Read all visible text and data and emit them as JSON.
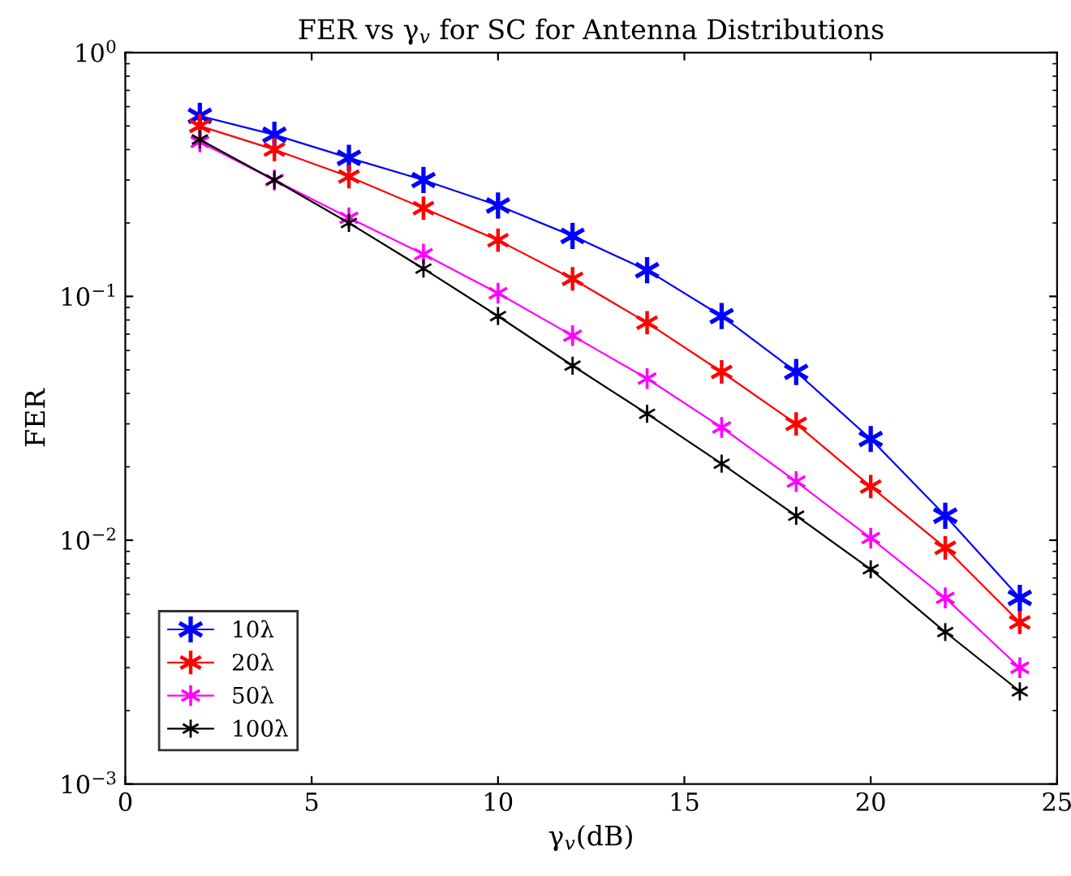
{
  "chart_data": {
    "type": "line",
    "title": "FER vs γ$_{v}$ for SC for Antenna Distributions",
    "xlabel": "γ$_{v}$(dB)",
    "ylabel": "FER",
    "x": [
      2,
      4,
      6,
      8,
      10,
      12,
      14,
      16,
      18,
      20,
      22,
      24
    ],
    "series": [
      {
        "name": "10λ",
        "color": "#0000ff",
        "values": [
          0.55,
          0.46,
          0.37,
          0.3,
          0.236,
          0.177,
          0.128,
          0.083,
          0.049,
          0.026,
          0.0126,
          0.0058
        ]
      },
      {
        "name": "20λ",
        "color": "#ff0000",
        "values": [
          0.5,
          0.4,
          0.31,
          0.23,
          0.17,
          0.118,
          0.078,
          0.049,
          0.03,
          0.0166,
          0.0093,
          0.0046
        ]
      },
      {
        "name": "50λ",
        "color": "#ff00ff",
        "values": [
          0.43,
          0.3,
          0.21,
          0.149,
          0.103,
          0.069,
          0.046,
          0.029,
          0.0174,
          0.0102,
          0.0058,
          0.003
        ]
      },
      {
        "name": "100λ",
        "color": "#000000",
        "values": [
          0.44,
          0.3,
          0.2,
          0.13,
          0.083,
          0.052,
          0.033,
          0.0206,
          0.0126,
          0.0076,
          0.0042,
          0.0024
        ]
      }
    ],
    "log": "y",
    "xlim": [
      0,
      25
    ],
    "xticks": [
      0,
      5,
      10,
      15,
      20,
      25
    ],
    "ylim": [
      0.001,
      1
    ],
    "yticks": [
      {
        "value": 0.001,
        "label": "10$^{−3}$"
      },
      {
        "value": 0.01,
        "label": "10$^{−2}$"
      },
      {
        "value": 0.1,
        "label": "10$^{−1}$"
      },
      {
        "value": 1,
        "label": "10$^{0}$"
      }
    ],
    "grid": false,
    "legend": "bottom left",
    "marker": "cross",
    "line_style": "solid"
  }
}
